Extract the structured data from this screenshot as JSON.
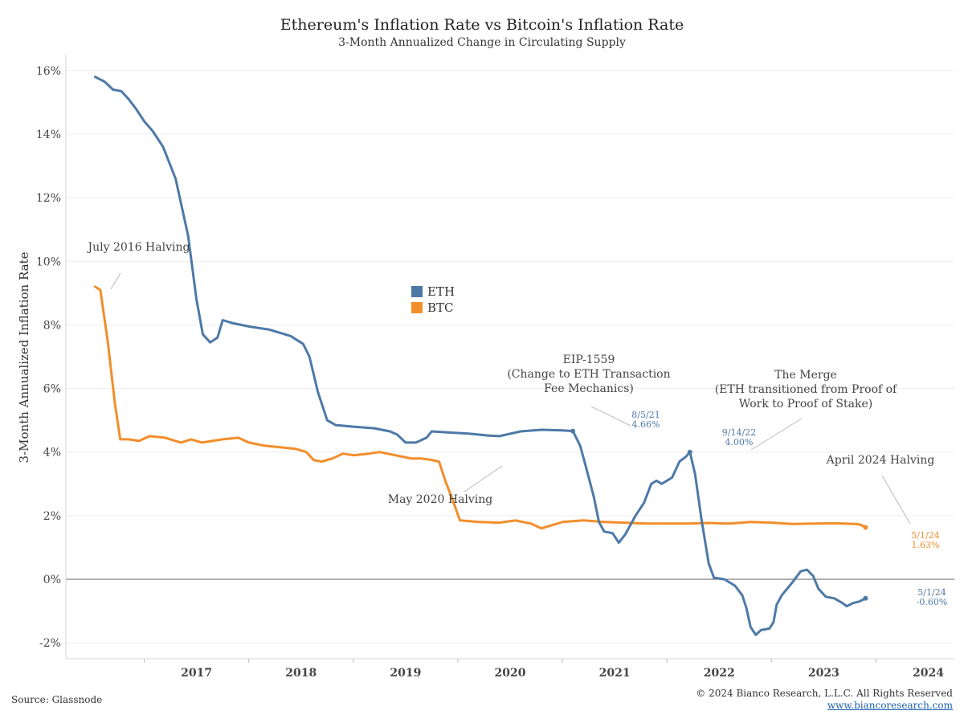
{
  "chart_data": {
    "type": "line",
    "title": "Ethereum's Inflation Rate vs Bitcoin's Inflation Rate",
    "subtitle": "3-Month Annualized Change in Circulating Supply",
    "ylabel": "3-Month Annualized Inflation Rate",
    "xlabel": "",
    "ylim": [
      -2.5,
      16.5
    ],
    "xlim": [
      2016.25,
      2024.75
    ],
    "y_ticks": [
      "16%",
      "14%",
      "12%",
      "10%",
      "8%",
      "6%",
      "4%",
      "2%",
      "0%",
      "-2%"
    ],
    "x_ticks": [
      "2017",
      "2018",
      "2019",
      "2020",
      "2021",
      "2022",
      "2023",
      "2024"
    ],
    "grid": true,
    "legend": {
      "position": "center-left",
      "entries": [
        "ETH",
        "BTC"
      ]
    },
    "colors": {
      "ETH": "#4e79a7",
      "BTC": "#f28e2b"
    },
    "series": [
      {
        "name": "ETH",
        "points": [
          [
            2016.53,
            15.8
          ],
          [
            2016.62,
            15.65
          ],
          [
            2016.7,
            15.4
          ],
          [
            2016.78,
            15.35
          ],
          [
            2016.85,
            15.1
          ],
          [
            2016.92,
            14.8
          ],
          [
            2017.0,
            14.4
          ],
          [
            2017.08,
            14.1
          ],
          [
            2017.18,
            13.6
          ],
          [
            2017.3,
            12.6
          ],
          [
            2017.42,
            10.8
          ],
          [
            2017.5,
            8.8
          ],
          [
            2017.56,
            7.7
          ],
          [
            2017.63,
            7.45
          ],
          [
            2017.7,
            7.6
          ],
          [
            2017.75,
            8.15
          ],
          [
            2017.85,
            8.05
          ],
          [
            2018.0,
            7.95
          ],
          [
            2018.2,
            7.85
          ],
          [
            2018.4,
            7.65
          ],
          [
            2018.52,
            7.4
          ],
          [
            2018.58,
            7.0
          ],
          [
            2018.66,
            5.9
          ],
          [
            2018.75,
            5.0
          ],
          [
            2018.83,
            4.85
          ],
          [
            2019.0,
            4.8
          ],
          [
            2019.2,
            4.75
          ],
          [
            2019.35,
            4.65
          ],
          [
            2019.42,
            4.55
          ],
          [
            2019.5,
            4.3
          ],
          [
            2019.6,
            4.3
          ],
          [
            2019.7,
            4.45
          ],
          [
            2019.75,
            4.65
          ],
          [
            2019.9,
            4.62
          ],
          [
            2020.1,
            4.58
          ],
          [
            2020.3,
            4.52
          ],
          [
            2020.4,
            4.5
          ],
          [
            2020.6,
            4.65
          ],
          [
            2020.8,
            4.7
          ],
          [
            2021.0,
            4.68
          ],
          [
            2021.1,
            4.66
          ],
          [
            2021.17,
            4.2
          ],
          [
            2021.22,
            3.6
          ],
          [
            2021.3,
            2.6
          ],
          [
            2021.35,
            1.8
          ],
          [
            2021.4,
            1.5
          ],
          [
            2021.48,
            1.45
          ],
          [
            2021.54,
            1.15
          ],
          [
            2021.6,
            1.4
          ],
          [
            2021.7,
            2.0
          ],
          [
            2021.78,
            2.4
          ],
          [
            2021.85,
            3.0
          ],
          [
            2021.9,
            3.1
          ],
          [
            2021.95,
            3.0
          ],
          [
            2022.0,
            3.1
          ],
          [
            2022.05,
            3.2
          ],
          [
            2022.12,
            3.7
          ],
          [
            2022.18,
            3.85
          ],
          [
            2022.22,
            4.0
          ],
          [
            2022.27,
            3.3
          ],
          [
            2022.33,
            1.9
          ],
          [
            2022.4,
            0.5
          ],
          [
            2022.45,
            0.05
          ],
          [
            2022.55,
            0.0
          ],
          [
            2022.65,
            -0.2
          ],
          [
            2022.72,
            -0.5
          ],
          [
            2022.76,
            -0.9
          ],
          [
            2022.8,
            -1.5
          ],
          [
            2022.85,
            -1.75
          ],
          [
            2022.9,
            -1.6
          ],
          [
            2022.98,
            -1.55
          ],
          [
            2023.02,
            -1.35
          ],
          [
            2023.05,
            -0.8
          ],
          [
            2023.1,
            -0.5
          ],
          [
            2023.2,
            -0.1
          ],
          [
            2023.28,
            0.25
          ],
          [
            2023.34,
            0.3
          ],
          [
            2023.4,
            0.1
          ],
          [
            2023.45,
            -0.3
          ],
          [
            2023.52,
            -0.55
          ],
          [
            2023.6,
            -0.6
          ],
          [
            2023.68,
            -0.75
          ],
          [
            2023.72,
            -0.85
          ],
          [
            2023.78,
            -0.75
          ],
          [
            2023.84,
            -0.7
          ],
          [
            2023.9,
            -0.6
          ]
        ]
      },
      {
        "name": "BTC",
        "points": [
          [
            2016.53,
            9.2
          ],
          [
            2016.58,
            9.1
          ],
          [
            2016.65,
            7.5
          ],
          [
            2016.72,
            5.5
          ],
          [
            2016.77,
            4.4
          ],
          [
            2016.85,
            4.4
          ],
          [
            2016.95,
            4.35
          ],
          [
            2017.05,
            4.5
          ],
          [
            2017.2,
            4.45
          ],
          [
            2017.35,
            4.3
          ],
          [
            2017.45,
            4.4
          ],
          [
            2017.55,
            4.3
          ],
          [
            2017.65,
            4.35
          ],
          [
            2017.75,
            4.4
          ],
          [
            2017.9,
            4.45
          ],
          [
            2018.0,
            4.3
          ],
          [
            2018.15,
            4.2
          ],
          [
            2018.3,
            4.15
          ],
          [
            2018.45,
            4.1
          ],
          [
            2018.55,
            4.0
          ],
          [
            2018.62,
            3.75
          ],
          [
            2018.7,
            3.7
          ],
          [
            2018.8,
            3.8
          ],
          [
            2018.9,
            3.95
          ],
          [
            2019.0,
            3.9
          ],
          [
            2019.15,
            3.95
          ],
          [
            2019.25,
            4.0
          ],
          [
            2019.4,
            3.9
          ],
          [
            2019.55,
            3.8
          ],
          [
            2019.65,
            3.8
          ],
          [
            2019.75,
            3.75
          ],
          [
            2019.82,
            3.7
          ],
          [
            2019.88,
            3.1
          ],
          [
            2019.95,
            2.5
          ],
          [
            2020.02,
            1.85
          ],
          [
            2020.2,
            1.8
          ],
          [
            2020.4,
            1.78
          ],
          [
            2020.55,
            1.85
          ],
          [
            2020.7,
            1.75
          ],
          [
            2020.8,
            1.6
          ],
          [
            2020.9,
            1.7
          ],
          [
            2021.0,
            1.8
          ],
          [
            2021.2,
            1.85
          ],
          [
            2021.4,
            1.8
          ],
          [
            2021.6,
            1.78
          ],
          [
            2021.8,
            1.75
          ],
          [
            2022.0,
            1.75
          ],
          [
            2022.2,
            1.75
          ],
          [
            2022.4,
            1.77
          ],
          [
            2022.6,
            1.75
          ],
          [
            2022.8,
            1.8
          ],
          [
            2023.0,
            1.78
          ],
          [
            2023.2,
            1.74
          ],
          [
            2023.4,
            1.75
          ],
          [
            2023.6,
            1.76
          ],
          [
            2023.8,
            1.74
          ],
          [
            2023.85,
            1.72
          ],
          [
            2023.9,
            1.63
          ]
        ]
      }
    ],
    "annotations": [
      {
        "text": "July 2016 Halving",
        "x": 2016.53,
        "y": 9.2
      },
      {
        "text": "May 2020 Halving",
        "x": 2020.0,
        "y": 3.7
      },
      {
        "lines": [
          "EIP-1559",
          "(Change to ETH Transaction",
          "Fee Mechanics)"
        ],
        "x": 2021.1,
        "y": 4.66
      },
      {
        "lines": [
          "The Merge",
          "(ETH transitioned from Proof of",
          "Work to Proof of Stake)"
        ],
        "x": 2022.22,
        "y": 4.0
      },
      {
        "text": "April 2024 Halving",
        "x": 2023.9,
        "y": 1.63
      }
    ],
    "data_labels": [
      {
        "date": "8/5/21",
        "value": "4.66%",
        "series": "ETH",
        "x": 2021.1,
        "y": 4.66
      },
      {
        "date": "9/14/22",
        "value": "4.00%",
        "series": "ETH",
        "x": 2022.22,
        "y": 4.0
      },
      {
        "date": "5/1/24",
        "value": "1.63%",
        "series": "BTC",
        "x": 2023.9,
        "y": 1.63
      },
      {
        "date": "5/1/24",
        "value": "-0.60%",
        "series": "ETH",
        "x": 2023.9,
        "y": -0.6
      }
    ]
  },
  "footer": {
    "source": "Source: Glassnode",
    "copyright": "© 2024 Bianco Research, L.L.C. All Rights Reserved",
    "url": "www.biancoresearch.com"
  }
}
